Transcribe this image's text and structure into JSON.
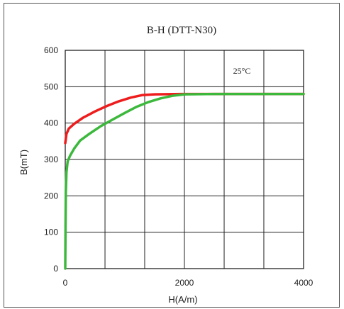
{
  "chart_data": {
    "type": "line",
    "title": "B-H (DTT-N30)",
    "xlabel": "H(A/m)",
    "ylabel": "B(mT)",
    "annotation": "25°C",
    "xlim": [
      0,
      4000
    ],
    "ylim": [
      0,
      600
    ],
    "x_ticks": [
      "0",
      "2000",
      "4000"
    ],
    "x_grid": [
      0,
      667,
      1333,
      2000,
      2667,
      3333,
      4000
    ],
    "y_ticks": [
      "0",
      "100",
      "200",
      "300",
      "400",
      "500",
      "600"
    ],
    "y_grid": [
      0,
      100,
      200,
      300,
      400,
      500,
      600
    ],
    "grid": true,
    "series": [
      {
        "color": "#ee1c1c",
        "points": [
          [
            0,
            345
          ],
          [
            20,
            370
          ],
          [
            60,
            385
          ],
          [
            150,
            398
          ],
          [
            300,
            415
          ],
          [
            500,
            432
          ],
          [
            700,
            447
          ],
          [
            900,
            460
          ],
          [
            1100,
            470
          ],
          [
            1300,
            477
          ],
          [
            1500,
            479
          ],
          [
            2000,
            480
          ],
          [
            3000,
            480
          ],
          [
            4000,
            480
          ]
        ]
      },
      {
        "color": "#3cb83c",
        "points": [
          [
            0,
            0
          ],
          [
            5,
            120
          ],
          [
            10,
            210
          ],
          [
            20,
            265
          ],
          [
            40,
            295
          ],
          [
            80,
            310
          ],
          [
            150,
            330
          ],
          [
            250,
            352
          ],
          [
            400,
            370
          ],
          [
            600,
            392
          ],
          [
            800,
            410
          ],
          [
            1000,
            428
          ],
          [
            1200,
            445
          ],
          [
            1400,
            458
          ],
          [
            1600,
            468
          ],
          [
            1800,
            475
          ],
          [
            2000,
            479
          ],
          [
            2500,
            480
          ],
          [
            4000,
            480
          ]
        ]
      }
    ]
  }
}
